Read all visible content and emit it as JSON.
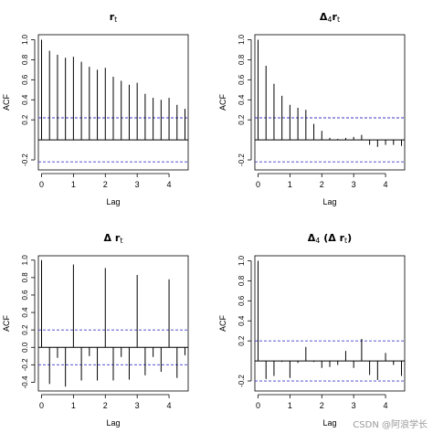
{
  "watermark": "CSDN @阿浪学长",
  "chart_data": [
    {
      "type": "bar",
      "title": "r",
      "title_sub": "t",
      "title_prefix": "",
      "title_suffix": "",
      "xlabel": "Lag",
      "ylabel": "ACF",
      "xlim": [
        -0.1,
        4.6
      ],
      "ylim": [
        -0.3,
        1.05
      ],
      "xticks": [
        "0",
        "1",
        "2",
        "3",
        "4"
      ],
      "yticks": [
        "-0.2",
        "0.2",
        "0.4",
        "0.6",
        "0.8",
        "1.0"
      ],
      "ci": 0.22,
      "grid": false,
      "lags": [
        0,
        0.25,
        0.5,
        0.75,
        1,
        1.25,
        1.5,
        1.75,
        2,
        2.25,
        2.5,
        2.75,
        3,
        3.25,
        3.5,
        3.75,
        4,
        4.25,
        4.5
      ],
      "acf": [
        1.0,
        0.89,
        0.85,
        0.82,
        0.83,
        0.78,
        0.73,
        0.7,
        0.72,
        0.63,
        0.59,
        0.55,
        0.57,
        0.46,
        0.42,
        0.4,
        0.42,
        0.35,
        0.31
      ]
    },
    {
      "type": "bar",
      "title": "r",
      "title_sub": "t",
      "title_prefix": "Δ",
      "title_prefix_sub": "4",
      "title_suffix": "",
      "xlabel": "Lag",
      "ylabel": "ACF",
      "xlim": [
        -0.1,
        4.6
      ],
      "ylim": [
        -0.3,
        1.05
      ],
      "xticks": [
        "0",
        "1",
        "2",
        "3",
        "4"
      ],
      "yticks": [
        "-0.2",
        "0.2",
        "0.4",
        "0.6",
        "0.8",
        "1.0"
      ],
      "ci": 0.22,
      "grid": false,
      "lags": [
        0,
        0.25,
        0.5,
        0.75,
        1,
        1.25,
        1.5,
        1.75,
        2,
        2.25,
        2.5,
        2.75,
        3,
        3.25,
        3.5,
        3.75,
        4,
        4.25,
        4.5
      ],
      "acf": [
        1.0,
        0.74,
        0.56,
        0.44,
        0.35,
        0.32,
        0.3,
        0.16,
        0.09,
        0.02,
        0.01,
        0.02,
        0.03,
        0.05,
        -0.05,
        -0.07,
        -0.05,
        -0.05,
        -0.06
      ]
    },
    {
      "type": "bar",
      "title": "r",
      "title_sub": "t",
      "title_prefix": "Δ ",
      "title_prefix_sub": "",
      "title_suffix": "",
      "xlabel": "Lag",
      "ylabel": "ACF",
      "xlim": [
        -0.1,
        4.6
      ],
      "ylim": [
        -0.5,
        1.05
      ],
      "xticks": [
        "0",
        "1",
        "2",
        "3",
        "4"
      ],
      "yticks": [
        "-0.4",
        "-0.2",
        "0.0",
        "0.2",
        "0.4",
        "0.6",
        "0.8",
        "1.0"
      ],
      "ci": 0.2,
      "grid": false,
      "lags": [
        0,
        0.25,
        0.5,
        0.75,
        1,
        1.25,
        1.5,
        1.75,
        2,
        2.25,
        2.5,
        2.75,
        3,
        3.25,
        3.5,
        3.75,
        4,
        4.25,
        4.5
      ],
      "acf": [
        1.0,
        -0.42,
        -0.12,
        -0.45,
        0.95,
        -0.38,
        -0.1,
        -0.38,
        0.91,
        -0.38,
        -0.11,
        -0.37,
        0.83,
        -0.32,
        -0.11,
        -0.28,
        0.78,
        -0.35,
        -0.09
      ]
    },
    {
      "type": "bar",
      "title": "r",
      "title_sub": "t",
      "title_prefix": "Δ",
      "title_prefix_sub": "4",
      "title_suffix": ")",
      "title_inner_prefix": " (Δ ",
      "xlabel": "Lag",
      "ylabel": "ACF",
      "xlim": [
        -0.1,
        4.6
      ],
      "ylim": [
        -0.3,
        1.05
      ],
      "xticks": [
        "0",
        "1",
        "2",
        "3",
        "4"
      ],
      "yticks": [
        "-0.2",
        "0.2",
        "0.4",
        "0.6",
        "0.8",
        "1.0"
      ],
      "ci": 0.2,
      "grid": false,
      "lags": [
        0,
        0.25,
        0.5,
        0.75,
        1,
        1.25,
        1.5,
        1.75,
        2,
        2.25,
        2.5,
        2.75,
        3,
        3.25,
        3.5,
        3.75,
        4,
        4.25,
        4.5
      ],
      "acf": [
        1.0,
        -0.18,
        -0.15,
        -0.01,
        -0.17,
        -0.02,
        0.14,
        -0.01,
        -0.07,
        -0.06,
        -0.04,
        0.1,
        -0.07,
        0.22,
        -0.14,
        -0.19,
        0.08,
        -0.04,
        -0.15
      ]
    }
  ],
  "colors": {
    "ci_line": "#3a3acc",
    "axis": "#000000",
    "bar": "#000000"
  }
}
